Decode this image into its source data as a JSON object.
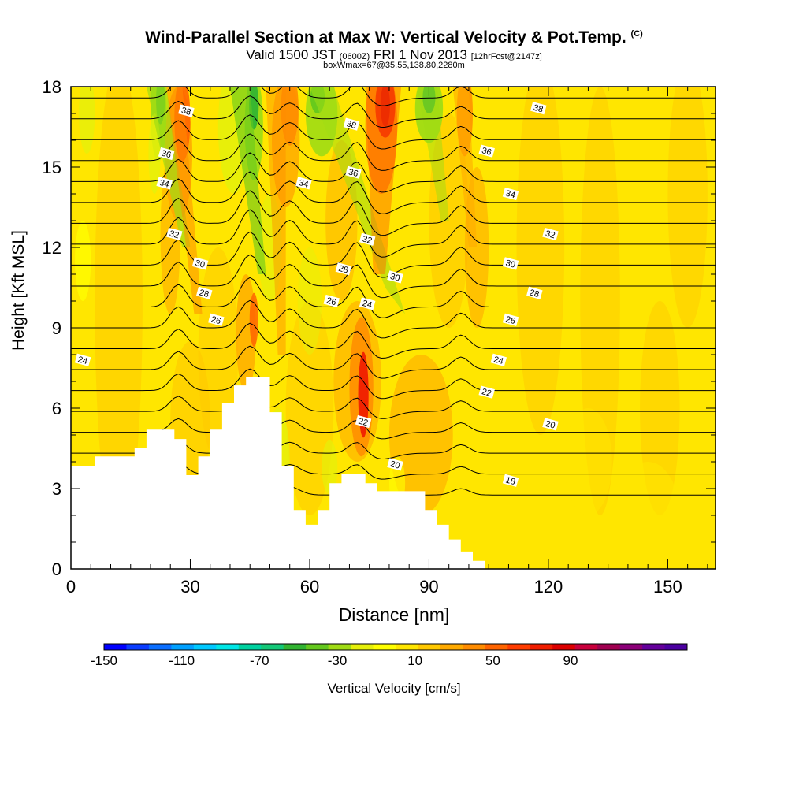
{
  "title": {
    "main": "Wind-Parallel Section at Max W: Vertical Velocity & Pot.Temp.",
    "copyright": "(C)",
    "valid_prefix": "Valid 1500 JST",
    "utc": "(0600Z)",
    "date": "FRI 1 Nov 2013",
    "forecast": "[12hrFcst@2147z]",
    "boxline": "boxWmax=67@35.55,138.80,2280m"
  },
  "chart_data": {
    "type": "heatmap",
    "xlabel": "Distance [nm]",
    "ylabel": "Height [Kft MSL]",
    "xlim": [
      0,
      162
    ],
    "ylim": [
      0,
      18
    ],
    "x_ticks": [
      0,
      30,
      60,
      90,
      120,
      150
    ],
    "y_ticks": [
      0,
      3,
      6,
      9,
      12,
      15,
      18
    ],
    "colorbar": {
      "label": "Vertical Velocity [cm/s]",
      "tick_labels": [
        -150,
        -110,
        -70,
        -30,
        10,
        50,
        90
      ],
      "levels_min": -150,
      "levels_max": 130,
      "level_step": 10,
      "colors": [
        "#0000ff",
        "#0a3cff",
        "#0a6eff",
        "#00a0ff",
        "#00c8ff",
        "#00e6e6",
        "#00d2a0",
        "#14c878",
        "#32b432",
        "#64c81e",
        "#a0dc14",
        "#e6f00a",
        "#ffff00",
        "#ffe600",
        "#ffc800",
        "#ffaa00",
        "#ff8c00",
        "#ff6400",
        "#ff3c00",
        "#f01e00",
        "#dc0000",
        "#c8003c",
        "#a00050",
        "#8c0078",
        "#64009b",
        "#4b00a0"
      ]
    },
    "contour_field": "Potential temperature",
    "contour_labels": [
      {
        "x": 29,
        "y": 17.1,
        "v": "38"
      },
      {
        "x": 24,
        "y": 15.5,
        "v": "36"
      },
      {
        "x": 23.5,
        "y": 14.4,
        "v": "34"
      },
      {
        "x": 26,
        "y": 12.5,
        "v": "32"
      },
      {
        "x": 32.5,
        "y": 11.4,
        "v": "30"
      },
      {
        "x": 33.5,
        "y": 10.3,
        "v": "28"
      },
      {
        "x": 36.5,
        "y": 9.3,
        "v": "26"
      },
      {
        "x": 3,
        "y": 7.8,
        "v": "24"
      },
      {
        "x": 70.5,
        "y": 16.6,
        "v": "38"
      },
      {
        "x": 71,
        "y": 14.8,
        "v": "36"
      },
      {
        "x": 58.5,
        "y": 14.4,
        "v": "34"
      },
      {
        "x": 74.5,
        "y": 12.3,
        "v": "32"
      },
      {
        "x": 81.5,
        "y": 10.9,
        "v": "30"
      },
      {
        "x": 68.5,
        "y": 11.2,
        "v": "28"
      },
      {
        "x": 65.5,
        "y": 10.0,
        "v": "26"
      },
      {
        "x": 74.5,
        "y": 9.9,
        "v": "24"
      },
      {
        "x": 73.5,
        "y": 5.5,
        "v": "22"
      },
      {
        "x": 81.5,
        "y": 3.9,
        "v": "20"
      },
      {
        "x": 117.5,
        "y": 17.2,
        "v": "38"
      },
      {
        "x": 104.5,
        "y": 15.6,
        "v": "36"
      },
      {
        "x": 110.5,
        "y": 14.0,
        "v": "34"
      },
      {
        "x": 120.5,
        "y": 12.5,
        "v": "32"
      },
      {
        "x": 110.5,
        "y": 11.4,
        "v": "30"
      },
      {
        "x": 116.5,
        "y": 10.3,
        "v": "28"
      },
      {
        "x": 110.5,
        "y": 9.3,
        "v": "26"
      },
      {
        "x": 107.5,
        "y": 7.8,
        "v": "24"
      },
      {
        "x": 104.5,
        "y": 6.6,
        "v": "22"
      },
      {
        "x": 120.5,
        "y": 5.4,
        "v": "20"
      },
      {
        "x": 110.5,
        "y": 3.3,
        "v": "18"
      }
    ],
    "terrain": [
      [
        0,
        3.85
      ],
      [
        6,
        3.85
      ],
      [
        6,
        4.2
      ],
      [
        16,
        4.2
      ],
      [
        16,
        4.5
      ],
      [
        19,
        4.5
      ],
      [
        19,
        5.2
      ],
      [
        26,
        5.2
      ],
      [
        26,
        4.85
      ],
      [
        29,
        4.85
      ],
      [
        29,
        3.5
      ],
      [
        32,
        3.5
      ],
      [
        32,
        4.2
      ],
      [
        35,
        4.2
      ],
      [
        35,
        5.2
      ],
      [
        38,
        5.2
      ],
      [
        38,
        6.2
      ],
      [
        41,
        6.2
      ],
      [
        41,
        6.85
      ],
      [
        44,
        6.85
      ],
      [
        44,
        7.15
      ],
      [
        50,
        7.15
      ],
      [
        50,
        5.85
      ],
      [
        53,
        5.85
      ],
      [
        53,
        3.85
      ],
      [
        56,
        3.85
      ],
      [
        56,
        2.2
      ],
      [
        59,
        2.2
      ],
      [
        59,
        1.65
      ],
      [
        62,
        1.65
      ],
      [
        62,
        2.2
      ],
      [
        65,
        2.2
      ],
      [
        65,
        3.2
      ],
      [
        68,
        3.2
      ],
      [
        68,
        3.55
      ],
      [
        74,
        3.55
      ],
      [
        74,
        3.2
      ],
      [
        77,
        3.2
      ],
      [
        77,
        2.9
      ],
      [
        83,
        2.9
      ],
      [
        83,
        2.9
      ],
      [
        89,
        2.9
      ],
      [
        89,
        2.2
      ],
      [
        92,
        2.2
      ],
      [
        92,
        1.65
      ],
      [
        95,
        1.65
      ],
      [
        95,
        1.1
      ],
      [
        98,
        1.1
      ],
      [
        98,
        0.65
      ],
      [
        101,
        0.65
      ],
      [
        101,
        0.3
      ],
      [
        104,
        0.3
      ],
      [
        104,
        0
      ],
      [
        0,
        0
      ]
    ]
  }
}
